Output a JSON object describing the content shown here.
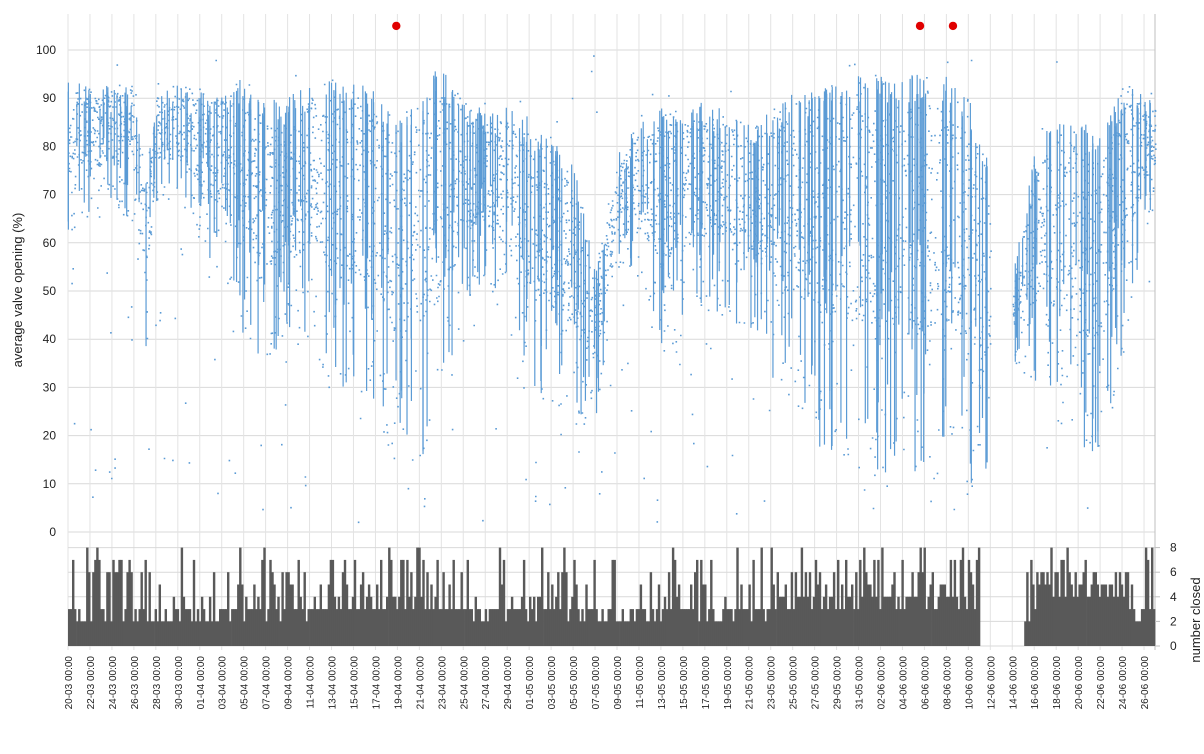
{
  "chart_data": {
    "type": "scatter",
    "top_panel": {
      "ylabel": "average valve opening (%)",
      "ylim": [
        0,
        105
      ],
      "yticks": [
        0,
        10,
        20,
        30,
        40,
        50,
        60,
        70,
        80,
        90,
        100
      ],
      "grid": true,
      "series_color": "#5b9bd5",
      "marker_color": "#e00000",
      "markers": [
        {
          "x_day": 29.9,
          "y": 105
        },
        {
          "x_day": 77.6,
          "y": 105
        },
        {
          "x_day": 80.6,
          "y": 105
        }
      ],
      "profile": [
        {
          "d": 0,
          "hi": 95,
          "lo": 62
        },
        {
          "d": 2,
          "hi": 92,
          "lo": 65
        },
        {
          "d": 4,
          "hi": 93,
          "lo": 68
        },
        {
          "d": 6,
          "hi": 94,
          "lo": 64
        },
        {
          "d": 7,
          "hi": 72,
          "lo": 33
        },
        {
          "d": 8,
          "hi": 92,
          "lo": 68
        },
        {
          "d": 10,
          "hi": 93,
          "lo": 68
        },
        {
          "d": 12,
          "hi": 92,
          "lo": 60
        },
        {
          "d": 14,
          "hi": 93,
          "lo": 52
        },
        {
          "d": 16,
          "hi": 94,
          "lo": 40
        },
        {
          "d": 18,
          "hi": 90,
          "lo": 35
        },
        {
          "d": 20,
          "hi": 90,
          "lo": 35
        },
        {
          "d": 22,
          "hi": 94,
          "lo": 40
        },
        {
          "d": 24,
          "hi": 96,
          "lo": 28
        },
        {
          "d": 26,
          "hi": 94,
          "lo": 30
        },
        {
          "d": 28,
          "hi": 92,
          "lo": 25
        },
        {
          "d": 30,
          "hi": 85,
          "lo": 12
        },
        {
          "d": 32,
          "hi": 92,
          "lo": 15
        },
        {
          "d": 34,
          "hi": 97,
          "lo": 20
        },
        {
          "d": 36,
          "hi": 90,
          "lo": 45
        },
        {
          "d": 38,
          "hi": 88,
          "lo": 50
        },
        {
          "d": 40,
          "hi": 89,
          "lo": 40
        },
        {
          "d": 42,
          "hi": 86,
          "lo": 30
        },
        {
          "d": 44,
          "hi": 82,
          "lo": 25
        },
        {
          "d": 46,
          "hi": 78,
          "lo": 22
        },
        {
          "d": 48,
          "hi": 55,
          "lo": 22
        },
        {
          "d": 50,
          "hi": 78,
          "lo": 52
        },
        {
          "d": 52,
          "hi": 85,
          "lo": 50
        },
        {
          "d": 54,
          "hi": 88,
          "lo": 35
        },
        {
          "d": 56,
          "hi": 90,
          "lo": 40
        },
        {
          "d": 58,
          "hi": 89,
          "lo": 45
        },
        {
          "d": 60,
          "hi": 88,
          "lo": 45
        },
        {
          "d": 62,
          "hi": 85,
          "lo": 40
        },
        {
          "d": 64,
          "hi": 88,
          "lo": 30
        },
        {
          "d": 66,
          "hi": 91,
          "lo": 25
        },
        {
          "d": 68,
          "hi": 92,
          "lo": 18
        },
        {
          "d": 70,
          "hi": 93,
          "lo": 15
        },
        {
          "d": 72,
          "hi": 95,
          "lo": 12
        },
        {
          "d": 74,
          "hi": 95,
          "lo": 10
        },
        {
          "d": 76,
          "hi": 95,
          "lo": 12
        },
        {
          "d": 78,
          "hi": 95,
          "lo": 10
        },
        {
          "d": 80,
          "hi": 95,
          "lo": 12
        },
        {
          "d": 82,
          "hi": 90,
          "lo": 10
        },
        {
          "d": 83,
          "hi": 85,
          "lo": 6
        },
        {
          "d": 86,
          "hi": 53,
          "lo": 36
        },
        {
          "d": 88,
          "hi": 78,
          "lo": 30
        },
        {
          "d": 90,
          "hi": 88,
          "lo": 22
        },
        {
          "d": 92,
          "hi": 86,
          "lo": 15
        },
        {
          "d": 94,
          "hi": 82,
          "lo": 14
        },
        {
          "d": 96,
          "hi": 93,
          "lo": 35
        },
        {
          "d": 98,
          "hi": 92,
          "lo": 62
        }
      ]
    },
    "bottom_panel": {
      "type": "area",
      "ylabel": "number closed",
      "ylim": [
        0,
        8
      ],
      "yticks": [
        0,
        2,
        4,
        6,
        8
      ],
      "color": "#595959",
      "gap": [
        84,
        86
      ]
    },
    "xaxis": {
      "tick_labels": [
        "20-03 00:00",
        "22-03 00:00",
        "24-03 00:00",
        "26-03 00:00",
        "28-03 00:00",
        "30-03 00:00",
        "01-04 00:00",
        "03-04 00:00",
        "05-04 00:00",
        "07-04 00:00",
        "09-04 00:00",
        "11-04 00:00",
        "13-04 00:00",
        "15-04 00:00",
        "17-04 00:00",
        "19-04 00:00",
        "21-04 00:00",
        "23-04 00:00",
        "25-04 00:00",
        "27-04 00:00",
        "29-04 00:00",
        "01-05 00:00",
        "03-05 00:00",
        "05-05 00:00",
        "07-05 00:00",
        "09-05 00:00",
        "11-05 00:00",
        "13-05 00:00",
        "15-05 00:00",
        "17-05 00:00",
        "19-05 00:00",
        "21-05 00:00",
        "23-05 00:00",
        "25-05 00:00",
        "27-05 00:00",
        "29-05 00:00",
        "31-05 00:00",
        "02-06 00:00",
        "04-06 00:00",
        "06-06 00:00",
        "08-06 00:00",
        "10-06 00:00",
        "12-06 00:00",
        "14-06 00:00",
        "16-06 00:00",
        "18-06 00:00",
        "20-06 00:00",
        "22-06 00:00",
        "24-06 00:00",
        "26-06 00:00"
      ]
    }
  }
}
